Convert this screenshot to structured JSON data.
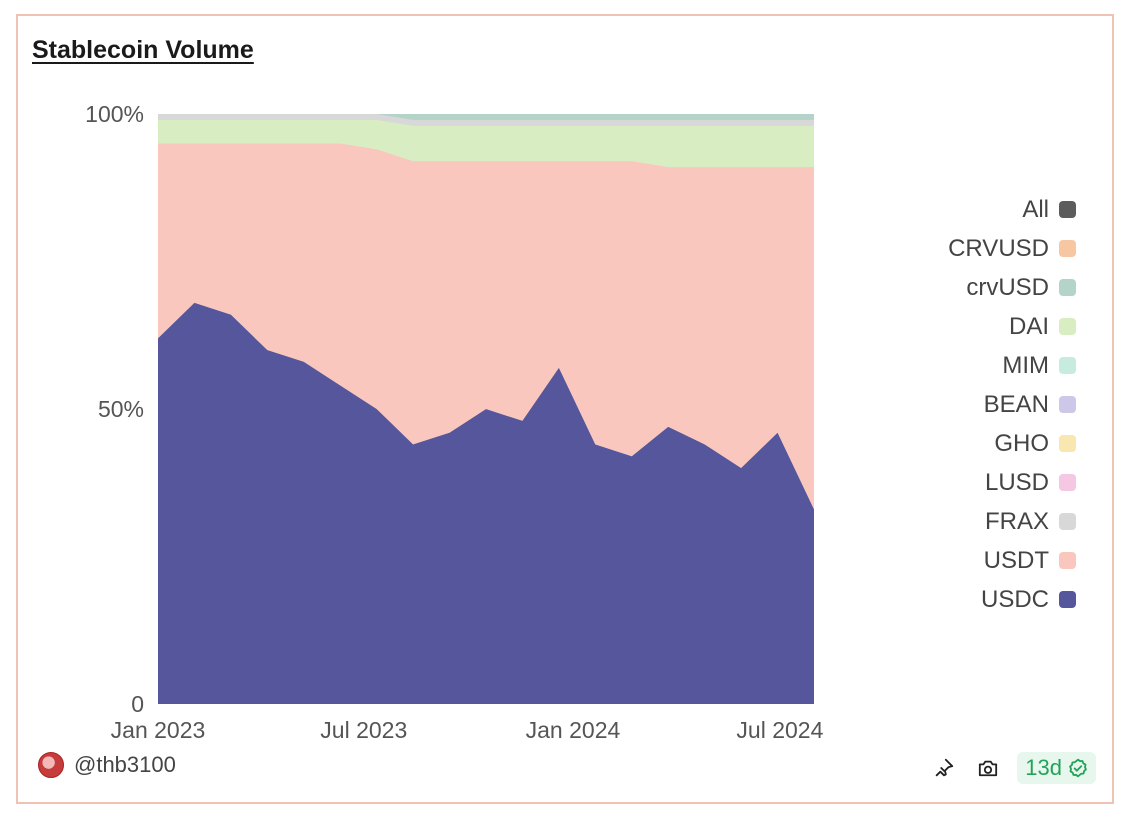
{
  "header": {
    "title": "Stablecoin Volume"
  },
  "chart_data": {
    "type": "area",
    "stacked": true,
    "normalized": true,
    "title": "Stablecoin Volume",
    "x_ticks": [
      "Jan 2023",
      "Jul 2023",
      "Jan 2024",
      "Jul 2024"
    ],
    "y_ticks": [
      "0",
      "50%",
      "100%"
    ],
    "ylim": [
      0,
      100
    ],
    "x_range": [
      "2023-01-01",
      "2024-07-31"
    ],
    "grid": false,
    "legend_position": "right",
    "legend": [
      "All",
      "CRVUSD",
      "crvUSD",
      "DAI",
      "MIM",
      "BEAN",
      "GHO",
      "LUSD",
      "FRAX",
      "USDT",
      "USDC"
    ],
    "colors": {
      "All": "#5c5c5c",
      "CRVUSD": "#f7c6a3",
      "crvUSD": "#b5d4c9",
      "DAI": "#d9edc3",
      "MIM": "#c7ecdf",
      "BEAN": "#cdc8ea",
      "GHO": "#f8e7b0",
      "LUSD": "#f4c7e3",
      "FRAX": "#d8d8d8",
      "USDT": "#f9c7bd",
      "USDC": "#55569c"
    },
    "x": [
      "2023-01",
      "2023-02",
      "2023-03",
      "2023-04",
      "2023-05",
      "2023-06",
      "2023-07",
      "2023-08",
      "2023-09",
      "2023-10",
      "2023-11",
      "2023-12",
      "2024-01",
      "2024-02",
      "2024-03",
      "2024-04",
      "2024-05",
      "2024-06",
      "2024-07"
    ],
    "series": [
      {
        "name": "USDC",
        "values": [
          62,
          68,
          66,
          60,
          58,
          54,
          50,
          44,
          46,
          50,
          48,
          57,
          44,
          42,
          47,
          44,
          40,
          46,
          33
        ]
      },
      {
        "name": "USDT",
        "values": [
          33,
          27,
          29,
          35,
          37,
          41,
          44,
          48,
          46,
          42,
          44,
          35,
          48,
          50,
          44,
          47,
          51,
          45,
          58
        ]
      },
      {
        "name": "DAI",
        "values": [
          4,
          4,
          4,
          4,
          4,
          4,
          5,
          6,
          6,
          6,
          6,
          6,
          6,
          6,
          7,
          7,
          7,
          7,
          7
        ]
      },
      {
        "name": "FRAX",
        "values": [
          1,
          1,
          1,
          1,
          1,
          1,
          1,
          1,
          1,
          1,
          1,
          1,
          1,
          1,
          1,
          1,
          1,
          1,
          1
        ]
      },
      {
        "name": "crvUSD",
        "values": [
          0,
          0,
          0,
          0,
          0,
          0,
          0,
          1,
          1,
          1,
          1,
          1,
          1,
          1,
          1,
          1,
          1,
          1,
          1
        ]
      }
    ]
  },
  "footer": {
    "author": "@thb3100",
    "age_badge": "13d",
    "icons": [
      "pin-icon",
      "camera-icon",
      "check-circle-icon"
    ]
  }
}
